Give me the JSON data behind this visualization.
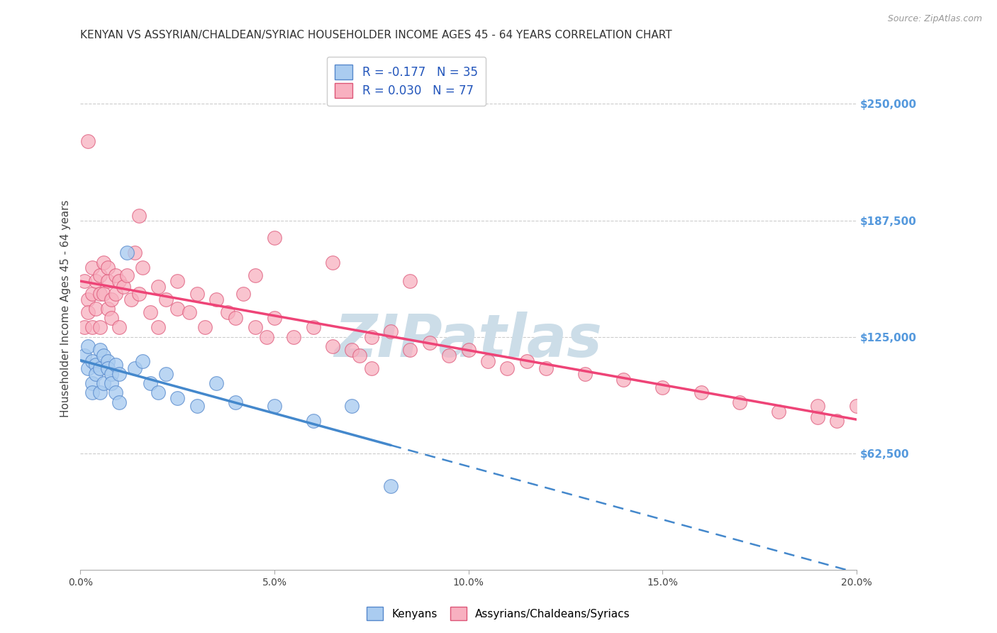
{
  "title": "KENYAN VS ASSYRIAN/CHALDEAN/SYRIAC HOUSEHOLDER INCOME AGES 45 - 64 YEARS CORRELATION CHART",
  "source": "Source: ZipAtlas.com",
  "ylabel": "Householder Income Ages 45 - 64 years",
  "xlim": [
    0.0,
    0.2
  ],
  "ylim": [
    0,
    280000
  ],
  "xtick_labels": [
    "0.0%",
    "5.0%",
    "10.0%",
    "15.0%",
    "20.0%"
  ],
  "xtick_positions": [
    0.0,
    0.05,
    0.1,
    0.15,
    0.2
  ],
  "ytick_values": [
    62500,
    125000,
    187500,
    250000
  ],
  "ytick_labels": [
    "$62,500",
    "$125,000",
    "$187,500",
    "$250,000"
  ],
  "kenyan_R": -0.177,
  "kenyan_N": 35,
  "assyrian_R": 0.03,
  "assyrian_N": 77,
  "kenyan_color": "#aaccf0",
  "kenyan_edge_color": "#5588cc",
  "assyrian_color": "#f8b0c0",
  "assyrian_edge_color": "#dd5577",
  "kenyan_line_color": "#4488cc",
  "assyrian_line_color": "#ee4477",
  "background_color": "#ffffff",
  "grid_color": "#cccccc",
  "watermark_color": "#ccdde8",
  "right_tick_color": "#5599dd",
  "kenyan_scatter_x": [
    0.001,
    0.002,
    0.002,
    0.003,
    0.003,
    0.003,
    0.004,
    0.004,
    0.005,
    0.005,
    0.005,
    0.006,
    0.006,
    0.007,
    0.007,
    0.008,
    0.008,
    0.009,
    0.009,
    0.01,
    0.01,
    0.012,
    0.014,
    0.016,
    0.018,
    0.02,
    0.022,
    0.025,
    0.03,
    0.035,
    0.04,
    0.05,
    0.06,
    0.07,
    0.08
  ],
  "kenyan_scatter_y": [
    115000,
    108000,
    120000,
    100000,
    112000,
    95000,
    110000,
    105000,
    118000,
    108000,
    95000,
    115000,
    100000,
    112000,
    108000,
    105000,
    100000,
    95000,
    110000,
    105000,
    90000,
    170000,
    108000,
    112000,
    100000,
    95000,
    105000,
    92000,
    88000,
    100000,
    90000,
    88000,
    80000,
    88000,
    45000
  ],
  "assyrian_scatter_x": [
    0.001,
    0.001,
    0.002,
    0.002,
    0.003,
    0.003,
    0.003,
    0.004,
    0.004,
    0.005,
    0.005,
    0.005,
    0.006,
    0.006,
    0.007,
    0.007,
    0.007,
    0.008,
    0.008,
    0.009,
    0.009,
    0.01,
    0.01,
    0.011,
    0.012,
    0.013,
    0.014,
    0.015,
    0.016,
    0.018,
    0.02,
    0.02,
    0.022,
    0.025,
    0.025,
    0.028,
    0.03,
    0.032,
    0.035,
    0.038,
    0.04,
    0.042,
    0.045,
    0.045,
    0.048,
    0.05,
    0.055,
    0.06,
    0.065,
    0.07,
    0.072,
    0.075,
    0.08,
    0.085,
    0.09,
    0.095,
    0.1,
    0.105,
    0.11,
    0.115,
    0.12,
    0.13,
    0.14,
    0.15,
    0.16,
    0.17,
    0.18,
    0.19,
    0.195,
    0.2,
    0.002,
    0.015,
    0.05,
    0.065,
    0.075,
    0.085,
    0.19
  ],
  "assyrian_scatter_y": [
    130000,
    155000,
    145000,
    138000,
    148000,
    162000,
    130000,
    155000,
    140000,
    148000,
    130000,
    158000,
    148000,
    165000,
    155000,
    140000,
    162000,
    145000,
    135000,
    158000,
    148000,
    155000,
    130000,
    152000,
    158000,
    145000,
    170000,
    148000,
    162000,
    138000,
    152000,
    130000,
    145000,
    140000,
    155000,
    138000,
    148000,
    130000,
    145000,
    138000,
    135000,
    148000,
    130000,
    158000,
    125000,
    135000,
    125000,
    130000,
    120000,
    118000,
    115000,
    125000,
    128000,
    118000,
    122000,
    115000,
    118000,
    112000,
    108000,
    112000,
    108000,
    105000,
    102000,
    98000,
    95000,
    90000,
    85000,
    82000,
    80000,
    88000,
    230000,
    190000,
    178000,
    165000,
    108000,
    155000,
    88000
  ]
}
